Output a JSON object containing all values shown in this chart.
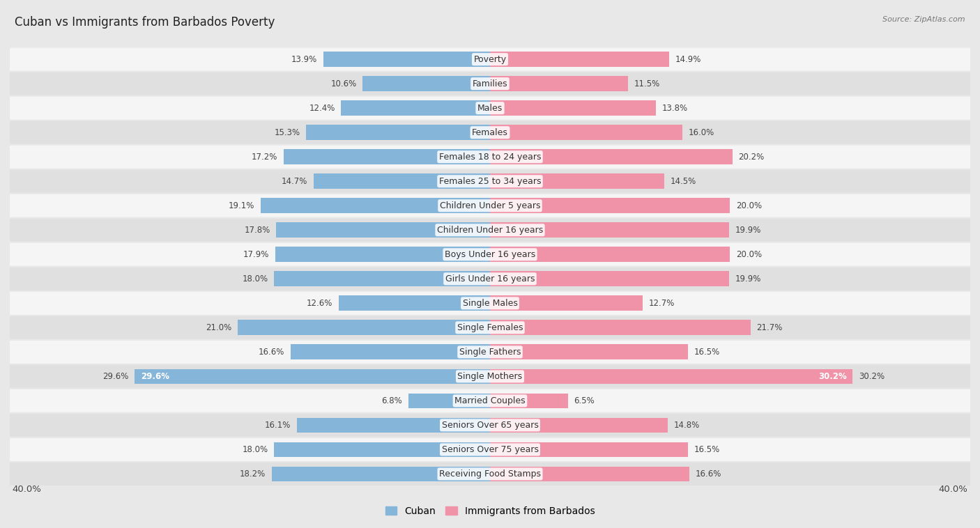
{
  "title": "Cuban vs Immigrants from Barbados Poverty",
  "source": "Source: ZipAtlas.com",
  "categories": [
    "Poverty",
    "Families",
    "Males",
    "Females",
    "Females 18 to 24 years",
    "Females 25 to 34 years",
    "Children Under 5 years",
    "Children Under 16 years",
    "Boys Under 16 years",
    "Girls Under 16 years",
    "Single Males",
    "Single Females",
    "Single Fathers",
    "Single Mothers",
    "Married Couples",
    "Seniors Over 65 years",
    "Seniors Over 75 years",
    "Receiving Food Stamps"
  ],
  "cuban_values": [
    13.9,
    10.6,
    12.4,
    15.3,
    17.2,
    14.7,
    19.1,
    17.8,
    17.9,
    18.0,
    12.6,
    21.0,
    16.6,
    29.6,
    6.8,
    16.1,
    18.0,
    18.2
  ],
  "barbados_values": [
    14.9,
    11.5,
    13.8,
    16.0,
    20.2,
    14.5,
    20.0,
    19.9,
    20.0,
    19.9,
    12.7,
    21.7,
    16.5,
    30.2,
    6.5,
    14.8,
    16.5,
    16.6
  ],
  "cuban_color": "#85b5d9",
  "barbados_color": "#f093a8",
  "cuban_label": "Cuban",
  "barbados_label": "Immigrants from Barbados",
  "xlim": 40.0,
  "bar_height": 0.62,
  "bg_color": "#e8e8e8",
  "row_bg_light": "#f5f5f5",
  "row_bg_dark": "#e0e0e0",
  "label_fontsize": 9,
  "value_fontsize": 8.5,
  "title_fontsize": 12
}
